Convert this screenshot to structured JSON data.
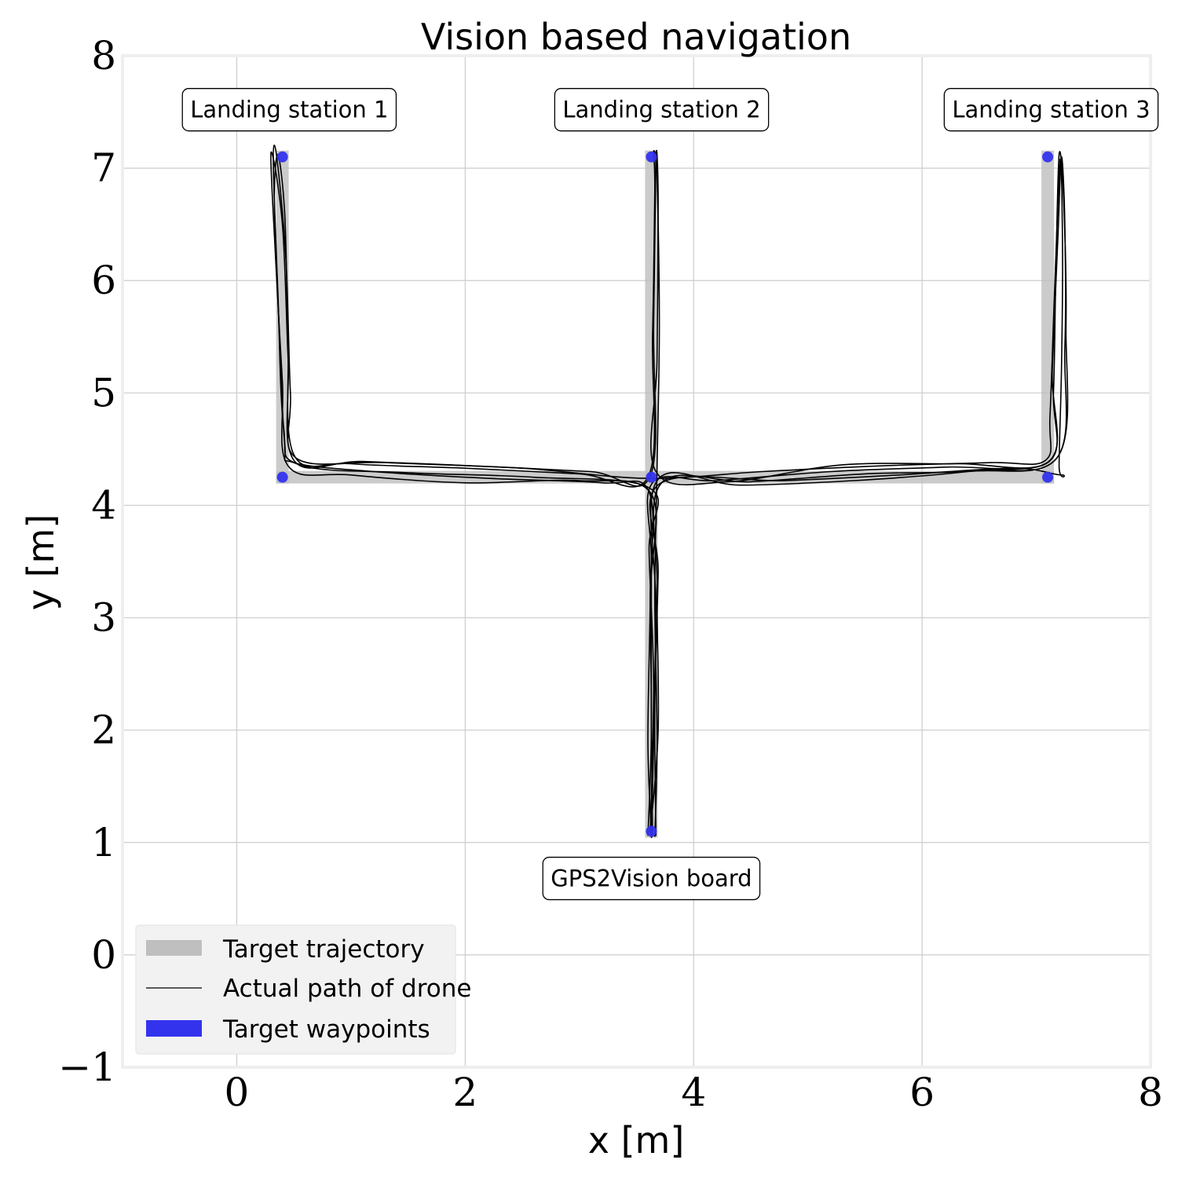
{
  "chart_data": {
    "type": "line",
    "title": "Vision based navigation",
    "xlabel": "x [m]",
    "ylabel": "y [m]",
    "xlim": [
      -1,
      8
    ],
    "ylim": [
      -1,
      8
    ],
    "xticks": [
      0,
      2,
      4,
      6,
      8
    ],
    "yticks": [
      -1,
      0,
      1,
      2,
      3,
      4,
      5,
      6,
      7,
      8
    ],
    "xtick_labels": [
      "0",
      "2",
      "4",
      "6",
      "8"
    ],
    "ytick_labels": [
      "−1",
      "0",
      "1",
      "2",
      "3",
      "4",
      "5",
      "6",
      "7",
      "8"
    ],
    "grid": true,
    "legend_position": "lower-left",
    "legend": [
      {
        "label": "Target trajectory",
        "kind": "patch",
        "color": "#bfbfbf"
      },
      {
        "label": "Actual path of drone",
        "kind": "line",
        "color": "#000000"
      },
      {
        "label": "Target waypoints",
        "kind": "patch",
        "color": "#3333ee"
      }
    ],
    "annotations": [
      {
        "text": "Landing station 1",
        "x": 0.46,
        "y": 7.52
      },
      {
        "text": "Landing station 2",
        "x": 3.72,
        "y": 7.52
      },
      {
        "text": "Landing station 3",
        "x": 7.13,
        "y": 7.52
      },
      {
        "text": "GPS2Vision board",
        "x": 3.63,
        "y": 0.68
      }
    ],
    "target_trajectory": [
      [
        [
          0.4,
          7.1
        ],
        [
          0.4,
          4.25
        ]
      ],
      [
        [
          0.4,
          4.25
        ],
        [
          7.1,
          4.25
        ]
      ],
      [
        [
          3.63,
          7.1
        ],
        [
          3.63,
          1.1
        ]
      ],
      [
        [
          7.1,
          7.1
        ],
        [
          7.1,
          4.25
        ]
      ]
    ],
    "waypoints": [
      {
        "x": 0.4,
        "y": 7.1
      },
      {
        "x": 3.63,
        "y": 7.1
      },
      {
        "x": 7.1,
        "y": 7.1
      },
      {
        "x": 0.4,
        "y": 4.25
      },
      {
        "x": 3.63,
        "y": 4.25
      },
      {
        "x": 7.1,
        "y": 4.25
      },
      {
        "x": 3.63,
        "y": 1.1
      }
    ],
    "series": [
      {
        "values": [
          [
            3.63,
            1.08
          ],
          [
            3.6,
            1.9
          ],
          [
            3.62,
            3.2
          ],
          [
            3.61,
            4.12
          ],
          [
            3.2,
            4.2
          ],
          [
            2.2,
            4.24
          ],
          [
            1.2,
            4.3
          ],
          [
            0.5,
            4.38
          ],
          [
            0.42,
            4.55
          ],
          [
            0.37,
            5.6
          ],
          [
            0.33,
            6.7
          ],
          [
            0.36,
            7.12
          ],
          [
            0.42,
            6.6
          ],
          [
            0.45,
            5.5
          ],
          [
            0.5,
            4.45
          ],
          [
            1.0,
            4.37
          ],
          [
            2.0,
            4.33
          ],
          [
            3.0,
            4.28
          ],
          [
            3.6,
            4.25
          ],
          [
            3.64,
            5.5
          ],
          [
            3.66,
            6.8
          ],
          [
            3.65,
            7.15
          ],
          [
            3.68,
            6.9
          ],
          [
            3.7,
            5.6
          ],
          [
            3.68,
            4.35
          ],
          [
            3.66,
            3.2
          ],
          [
            3.68,
            1.9
          ],
          [
            3.66,
            1.05
          ]
        ]
      },
      {
        "values": [
          [
            3.64,
            1.05
          ],
          [
            3.63,
            2.2
          ],
          [
            3.63,
            3.5
          ],
          [
            3.64,
            4.2
          ],
          [
            4.2,
            4.22
          ],
          [
            5.2,
            4.3
          ],
          [
            6.2,
            4.34
          ],
          [
            7.1,
            4.38
          ],
          [
            7.15,
            5.0
          ],
          [
            7.17,
            6.0
          ],
          [
            7.2,
            7.12
          ],
          [
            7.24,
            6.7
          ],
          [
            7.26,
            5.6
          ],
          [
            7.2,
            4.45
          ],
          [
            6.5,
            4.31
          ],
          [
            5.5,
            4.28
          ],
          [
            4.5,
            4.21
          ],
          [
            3.72,
            4.2
          ],
          [
            3.68,
            3.3
          ],
          [
            3.69,
            2.0
          ],
          [
            3.62,
            1.1
          ]
        ]
      },
      {
        "values": [
          [
            3.6,
            1.06
          ],
          [
            3.63,
            1.95
          ],
          [
            3.62,
            3.2
          ],
          [
            3.63,
            4.1
          ],
          [
            3.0,
            4.22
          ],
          [
            2.0,
            4.2
          ],
          [
            1.0,
            4.27
          ],
          [
            0.45,
            4.35
          ],
          [
            0.4,
            5.1
          ],
          [
            0.34,
            6.2
          ],
          [
            0.3,
            7.14
          ],
          [
            0.4,
            6.5
          ],
          [
            0.45,
            5.3
          ],
          [
            0.5,
            4.4
          ],
          [
            1.1,
            4.39
          ],
          [
            2.1,
            4.35
          ],
          [
            3.1,
            4.3
          ],
          [
            3.62,
            4.26
          ],
          [
            3.65,
            5.6
          ],
          [
            3.67,
            7.1
          ],
          [
            3.69,
            6.7
          ],
          [
            3.68,
            5.3
          ],
          [
            3.67,
            4.3
          ],
          [
            4.3,
            4.21
          ],
          [
            5.3,
            4.36
          ],
          [
            6.3,
            4.37
          ],
          [
            7.12,
            4.4
          ],
          [
            7.14,
            5.2
          ],
          [
            7.19,
            6.4
          ],
          [
            7.22,
            7.1
          ],
          [
            7.25,
            6.5
          ],
          [
            7.25,
            5.4
          ],
          [
            7.18,
            4.42
          ],
          [
            6.4,
            4.3
          ],
          [
            5.4,
            4.22
          ],
          [
            4.4,
            4.18
          ],
          [
            3.68,
            4.22
          ],
          [
            3.67,
            3.1
          ],
          [
            3.65,
            1.9
          ],
          [
            3.63,
            1.04
          ]
        ]
      },
      {
        "values": [
          [
            3.62,
            1.07
          ],
          [
            3.65,
            2.4
          ],
          [
            3.61,
            3.6
          ],
          [
            3.62,
            4.15
          ],
          [
            2.6,
            4.25
          ],
          [
            1.5,
            4.29
          ],
          [
            0.55,
            4.36
          ],
          [
            0.41,
            4.7
          ],
          [
            0.36,
            5.9
          ],
          [
            0.32,
            7.05
          ],
          [
            0.35,
            7.1
          ],
          [
            0.43,
            6.2
          ],
          [
            0.47,
            5.0
          ],
          [
            0.52,
            4.42
          ],
          [
            1.3,
            4.38
          ],
          [
            2.5,
            4.33
          ],
          [
            3.6,
            4.24
          ],
          [
            4.6,
            4.3
          ],
          [
            5.6,
            4.35
          ],
          [
            6.6,
            4.38
          ],
          [
            7.08,
            4.4
          ],
          [
            7.12,
            4.8
          ],
          [
            7.16,
            5.9
          ],
          [
            7.21,
            7.08
          ],
          [
            7.23,
            6.2
          ],
          [
            7.22,
            5.2
          ],
          [
            7.2,
            4.35
          ],
          [
            7.22,
            4.27
          ],
          [
            6.8,
            4.33
          ],
          [
            5.8,
            4.27
          ],
          [
            4.8,
            4.22
          ],
          [
            3.7,
            4.19
          ],
          [
            3.69,
            3.4
          ],
          [
            3.66,
            2.2
          ],
          [
            3.67,
            1.06
          ]
        ]
      }
    ]
  }
}
